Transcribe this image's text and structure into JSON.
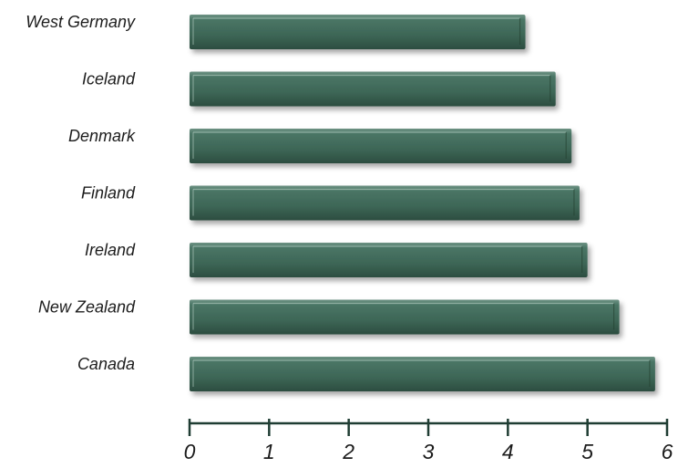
{
  "chart_data": {
    "type": "bar",
    "orientation": "horizontal",
    "categories": [
      "West Germany",
      "Iceland",
      "Denmark",
      "Finland",
      "Ireland",
      "New Zealand",
      "Canada"
    ],
    "values": [
      4.22,
      4.6,
      4.8,
      4.9,
      5.0,
      5.4,
      5.85
    ],
    "title": "",
    "xlabel": "",
    "ylabel": "",
    "xlim": [
      0,
      6
    ],
    "ticks": [
      "0",
      "1",
      "2",
      "3",
      "4",
      "5",
      "6"
    ],
    "grid": false,
    "legend": "none",
    "bar_color": "#3f6a59",
    "axis_color": "#1f3d33"
  }
}
